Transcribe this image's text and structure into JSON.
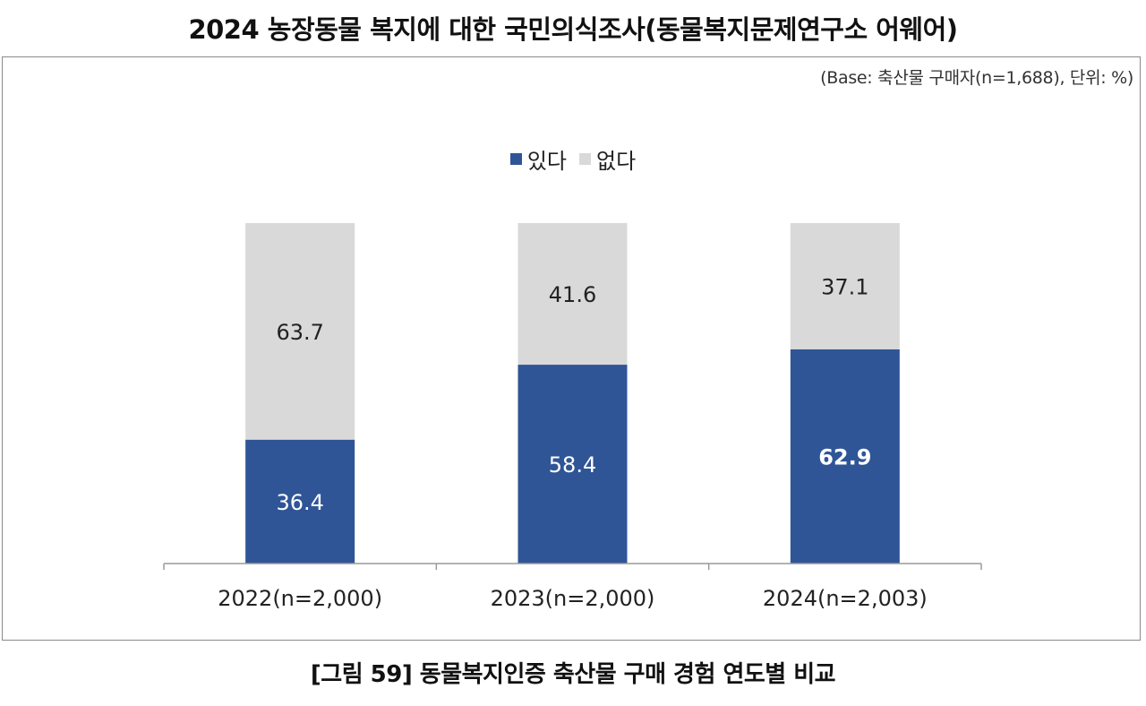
{
  "title": "2024 농장동물 복지에 대한 국민의식조사(동물복지문제연구소 어웨어)",
  "base_note": "(Base: 축산물 구매자(n=1,688), 단위: %)",
  "caption": "[그림 59] 동물복지인증 축산물 구매 경험 연도별 비교",
  "colors": {
    "yes": "#2f5597",
    "no": "#d9d9d9"
  },
  "chart_data": {
    "type": "bar",
    "stacked": true,
    "percent": true,
    "categories": [
      "2022(n=2,000)",
      "2023(n=2,000)",
      "2024(n=2,003)"
    ],
    "series": [
      {
        "name": "있다",
        "values": [
          36.4,
          58.4,
          62.9
        ]
      },
      {
        "name": "없다",
        "values": [
          63.7,
          41.6,
          37.1
        ]
      }
    ],
    "ylim": [
      0,
      100
    ],
    "legend": "top-center",
    "grid": false,
    "highlight_label": "62.9"
  }
}
